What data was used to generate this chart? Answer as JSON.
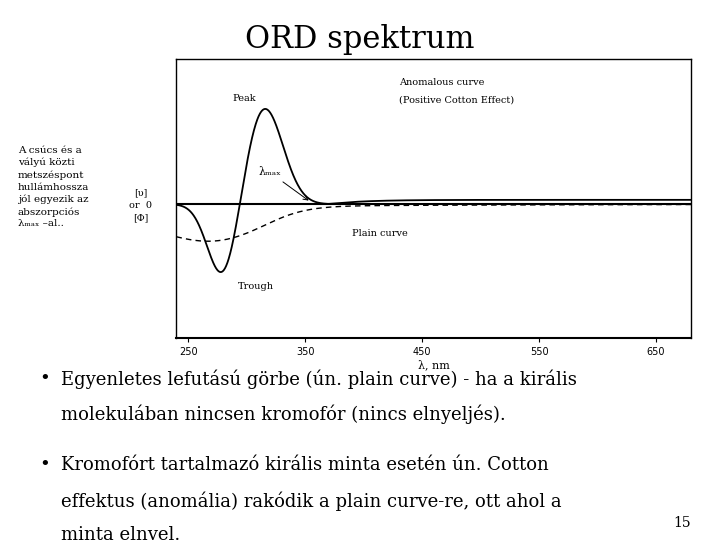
{
  "title": "ORD spektrum",
  "background_color": "#ffffff",
  "left_annotation_lines": [
    "A csúcs és a",
    "vályú közti",
    "metszéspont",
    "hullámhossza",
    "jól egyezik az",
    "abszorpciós",
    "λₘₐₓ –al.."
  ],
  "ylabel_lines": [
    "[υ]",
    "or  0",
    "[Φ]"
  ],
  "xlabel": "λ, nm",
  "x_ticks": [
    250,
    350,
    450,
    550,
    650
  ],
  "x_min": 240,
  "x_max": 680,
  "bullet1_line1": "Egyenletes lefutású görbe (ún. plain curve) - ha a királis",
  "bullet1_line2": "molekulában nincsen kromofór (nincs elnyeljés).",
  "bullet2_line1": "Kromofórt tartalmazó királis minta esetén ún. Cotton",
  "bullet2_line2": "effektus (anomália) rakódik a plain curve-re, ott ahol a",
  "bullet2_line3": "minta elnyel.",
  "page_number": "15",
  "anomalous_label1": "Anomalous curve",
  "anomalous_label2": "(Positive Cotton Effect)",
  "plain_label": "Plain curve",
  "peak_label": "Peak",
  "trough_label": "Trough",
  "lambda_max_label": "λₘₐₓ",
  "title_fontsize": 22,
  "annotation_fontsize": 7.5,
  "chart_label_fontsize": 7,
  "bullet_fontsize": 13
}
